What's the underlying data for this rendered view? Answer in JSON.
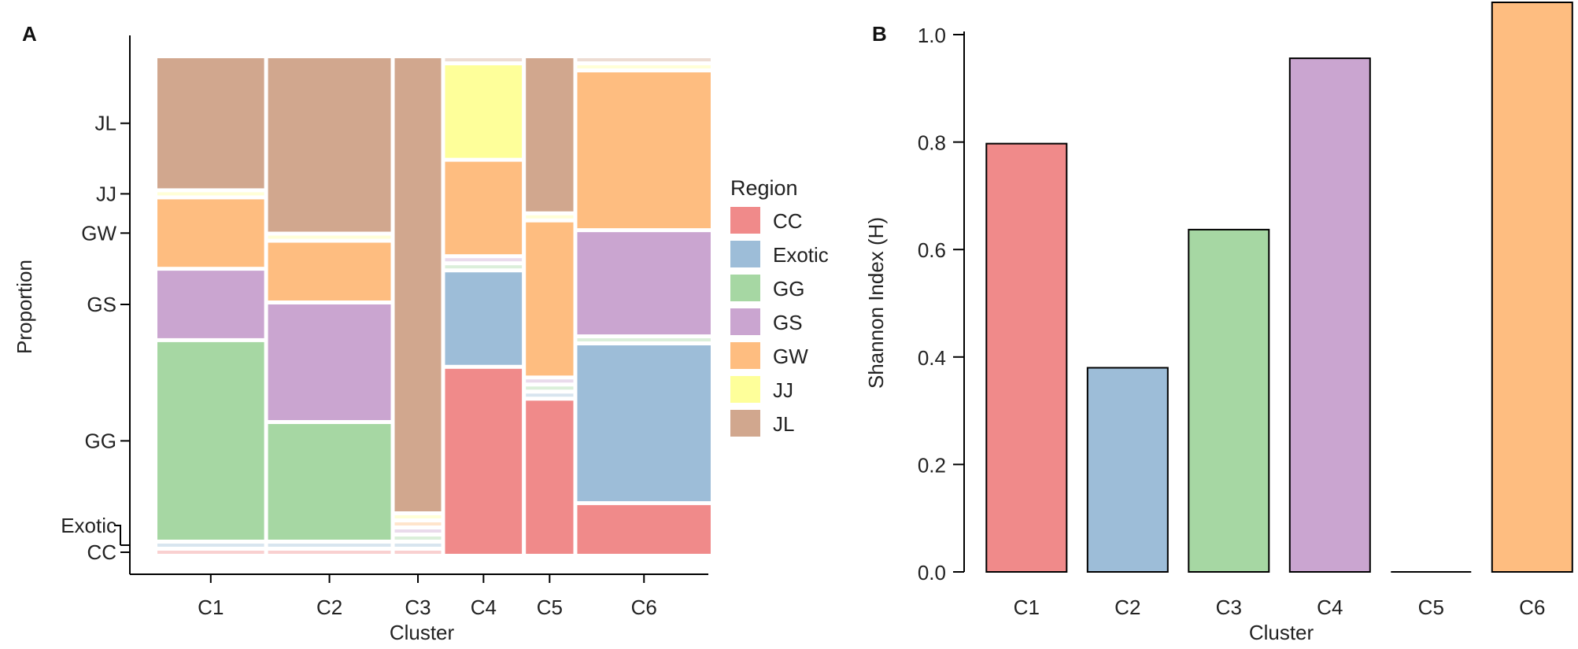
{
  "colors": {
    "CC": "#f08a8a",
    "Exotic": "#9dbdd8",
    "GG": "#a6d7a3",
    "GS": "#caa5d0",
    "GW": "#febd80",
    "JJ": "#feff9a",
    "JL": "#d1a78e"
  },
  "chart_data": [
    {
      "type": "mosaic",
      "panel_label": "A",
      "xlabel": "Cluster",
      "ylabel": "Proportion",
      "categories": [
        "C1",
        "C2",
        "C3",
        "C4",
        "C5",
        "C6"
      ],
      "cluster_widths": [
        0.2,
        0.23,
        0.087,
        0.144,
        0.089,
        0.25
      ],
      "region_order": [
        "CC",
        "Exotic",
        "GG",
        "GS",
        "GW",
        "JJ",
        "JL"
      ],
      "proportions": {
        "C1": {
          "CC": 0,
          "Exotic": 0,
          "GG": 0.41,
          "GS": 0.14,
          "GW": 0.14,
          "JJ": 0,
          "JL": 0.27
        },
        "C2": {
          "CC": 0,
          "Exotic": 0,
          "GG": 0.24,
          "GS": 0.24,
          "GW": 0.12,
          "JJ": 0,
          "JL": 0.36
        },
        "C3": {
          "CC": 0,
          "Exotic": 0,
          "GG": 0,
          "GS": 0,
          "GW": 0,
          "JJ": 0,
          "JL": 0.95
        },
        "C4": {
          "CC": 0.38,
          "Exotic": 0.19,
          "GG": 0,
          "GS": 0,
          "GW": 0.19,
          "JJ": 0.19,
          "JL": 0
        },
        "C5": {
          "CC": 0.32,
          "Exotic": 0,
          "GG": 0,
          "GS": 0,
          "GW": 0.32,
          "JJ": 0,
          "JL": 0.32
        },
        "C6": {
          "CC": 0.1,
          "Exotic": 0.32,
          "GG": 0,
          "GS": 0.21,
          "GW": 0.32,
          "JJ": 0,
          "JL": 0
        }
      },
      "y_tick_labels": [
        "CC",
        "Exotic",
        "GG",
        "GS",
        "GW",
        "JJ",
        "JL"
      ],
      "legend_title": "Region",
      "legend_entries": [
        "CC",
        "Exotic",
        "GG",
        "GS",
        "GW",
        "JJ",
        "JL"
      ],
      "legend_position": "right"
    },
    {
      "type": "bar",
      "panel_label": "B",
      "categories": [
        "C1",
        "C2",
        "C3",
        "C4",
        "C5",
        "C6"
      ],
      "values": [
        0.797,
        0.38,
        0.637,
        0.956,
        0.0,
        1.06
      ],
      "bar_regions": [
        "CC",
        "Exotic",
        "GG",
        "GS",
        "CC",
        "GW"
      ],
      "xlabel": "Cluster",
      "ylabel": "Shannon Index (H)",
      "ylim": [
        0,
        1.0
      ],
      "yticks": [
        0.0,
        0.2,
        0.4,
        0.6,
        0.8,
        1.0
      ],
      "ytick_labels": [
        "0.0",
        "0.2",
        "0.4",
        "0.6",
        "0.8",
        "1.0"
      ]
    }
  ]
}
